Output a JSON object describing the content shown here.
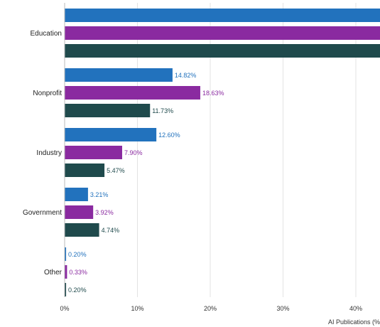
{
  "chart_data": {
    "type": "bar",
    "orientation": "horizontal",
    "title": "",
    "xlabel": "AI Publications (%",
    "ylabel": "",
    "categories": [
      "Education",
      "Nonprofit",
      "Industry",
      "Government",
      "Other"
    ],
    "series": [
      {
        "color": "#2272bd",
        "values": [
          null,
          14.82,
          12.6,
          3.21,
          0.2
        ],
        "labels": [
          "",
          "14.82%",
          "12.60%",
          "3.21%",
          "0.20%"
        ]
      },
      {
        "color": "#8a2aa0",
        "values": [
          null,
          18.63,
          7.9,
          3.92,
          0.33
        ],
        "labels": [
          "",
          "18.63%",
          "7.90%",
          "3.92%",
          "0.33%"
        ]
      },
      {
        "color": "#1f4a4c",
        "values": [
          null,
          11.73,
          5.47,
          4.74,
          0.2
        ],
        "labels": [
          "",
          "11.73%",
          "5.47%",
          "4.74%",
          "0.20%"
        ]
      }
    ],
    "xlim": [
      0,
      44
    ],
    "xticks": [
      {
        "value": 0,
        "label": "0%"
      },
      {
        "value": 10,
        "label": "10%"
      },
      {
        "value": 20,
        "label": "20%"
      },
      {
        "value": 30,
        "label": "30%"
      },
      {
        "value": 40,
        "label": "40%"
      }
    ],
    "grid": true,
    "legend": "none"
  }
}
